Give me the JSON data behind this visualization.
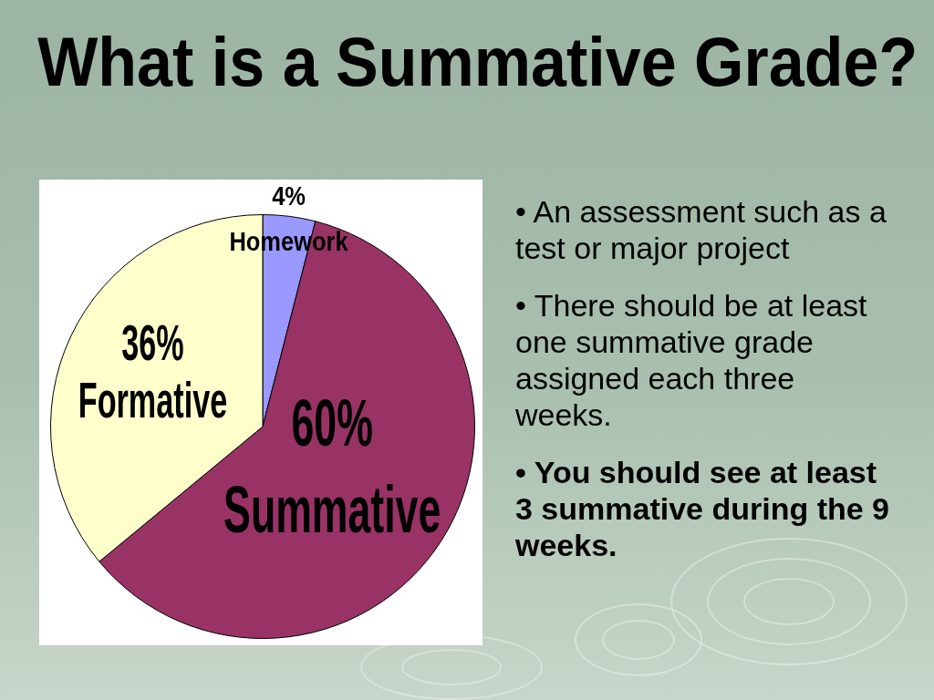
{
  "chart_data": {
    "type": "pie",
    "title": "What is a Summative Grade?",
    "categories": [
      "Homework",
      "Summative",
      "Formative"
    ],
    "values": [
      4,
      60,
      36
    ],
    "value_labels": [
      "4%",
      "60%",
      "36%"
    ],
    "colors": [
      "#9999ff",
      "#993366",
      "#ffffcc"
    ],
    "annotations": [
      "• An assessment such as a test or major project",
      "• There should be at least one summative grade assigned each three weeks.",
      "• You should see at least 3 summative during the 9 weeks."
    ]
  }
}
